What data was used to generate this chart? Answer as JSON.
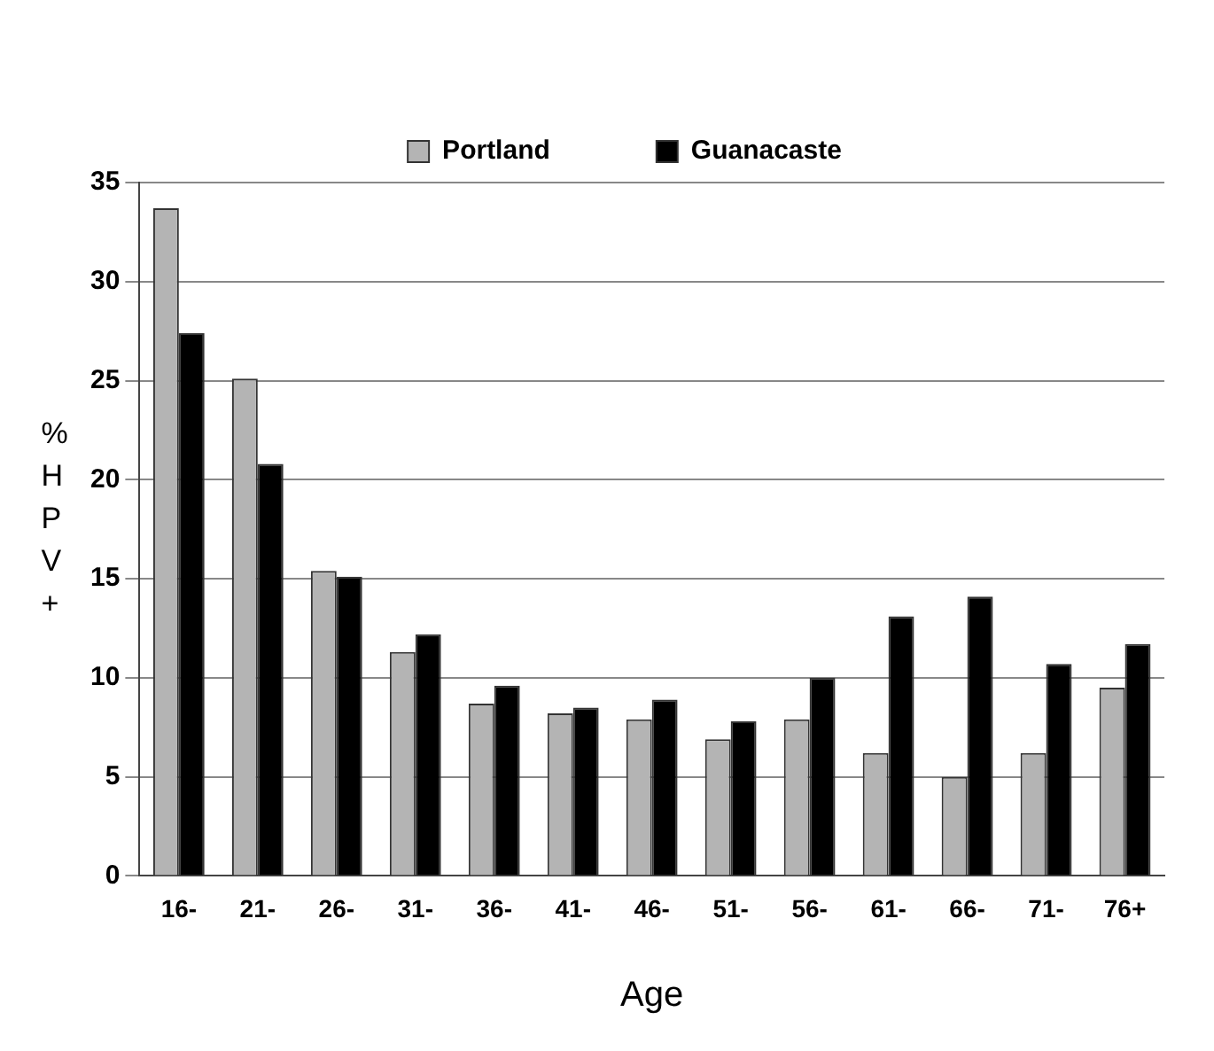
{
  "chart_data": {
    "type": "bar",
    "xlabel": "Age",
    "ylabel": "%HPV+",
    "categories": [
      "16-",
      "21-",
      "26-",
      "31-",
      "36-",
      "41-",
      "46-",
      "51-",
      "56-",
      "61-",
      "66-",
      "71-",
      "76+"
    ],
    "series": [
      {
        "name": "Portland",
        "color": "#b4b4b4",
        "values": [
          33.7,
          25.1,
          15.4,
          11.3,
          8.7,
          8.2,
          7.9,
          6.9,
          7.9,
          6.2,
          5.0,
          6.2,
          9.5
        ]
      },
      {
        "name": "Guanacaste",
        "color": "#000000",
        "values": [
          27.4,
          20.8,
          15.1,
          12.2,
          9.6,
          8.5,
          8.9,
          7.8,
          10.0,
          13.1,
          14.1,
          10.7,
          11.7
        ]
      }
    ],
    "ylim": [
      0,
      35
    ],
    "yticks": [
      0,
      5,
      10,
      15,
      20,
      25,
      30,
      35
    ],
    "grid": "y",
    "legend": "top"
  }
}
